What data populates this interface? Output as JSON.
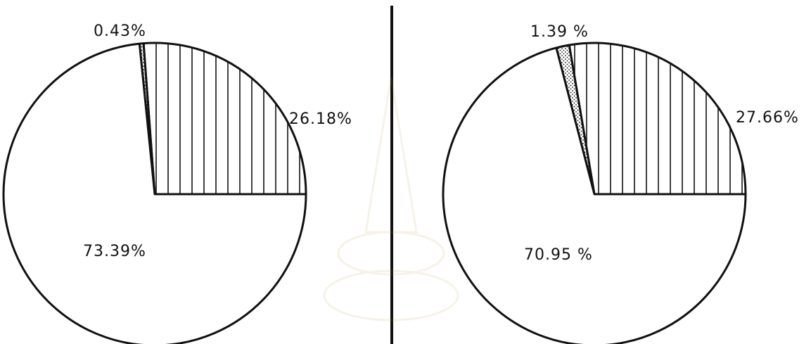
{
  "colors": {
    "ink": "#111111",
    "background": "#ffffff"
  },
  "chart_data": [
    {
      "type": "pie",
      "slices": [
        {
          "value": 73.39,
          "label": "73.39%",
          "pattern": "none"
        },
        {
          "value": 26.18,
          "label": "26.18%",
          "pattern": "vertical-hatch"
        },
        {
          "value": 0.43,
          "label": "0.43%",
          "pattern": "dots"
        }
      ]
    },
    {
      "type": "pie",
      "slices": [
        {
          "value": 70.95,
          "label": "70.95 %",
          "pattern": "none"
        },
        {
          "value": 27.66,
          "label": "27.66%",
          "pattern": "vertical-hatch"
        },
        {
          "value": 1.39,
          "label": "1.39 %",
          "pattern": "dots"
        }
      ]
    }
  ]
}
